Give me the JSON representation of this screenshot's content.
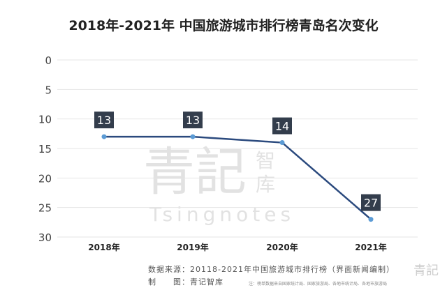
{
  "chart_data": {
    "type": "line",
    "title": "2018年-2021年 中国旅游城市排行榜青岛名次变化",
    "categories": [
      "2018年",
      "2019年",
      "2020年",
      "2021年"
    ],
    "values": [
      13,
      13,
      14,
      27
    ],
    "ylim": [
      30,
      0
    ],
    "y_inverted": true,
    "yticks": [
      0,
      5,
      10,
      15,
      20,
      25,
      30
    ],
    "grid": true,
    "line_color": "#2b4a7e",
    "label_bg": "#333d4c"
  },
  "watermark": {
    "main": "青記",
    "side": "智库",
    "latin": "Tsingnotes"
  },
  "footer": {
    "source": "数据来源：20118-2021年中国旅游城市排行榜（界面新闻编制）",
    "made_by": "制　　图：青记智库",
    "note": "注：榜单数据来自国家统计局、国家旅游局、各地市统计局、各地市旅游局",
    "logo": "青記"
  }
}
